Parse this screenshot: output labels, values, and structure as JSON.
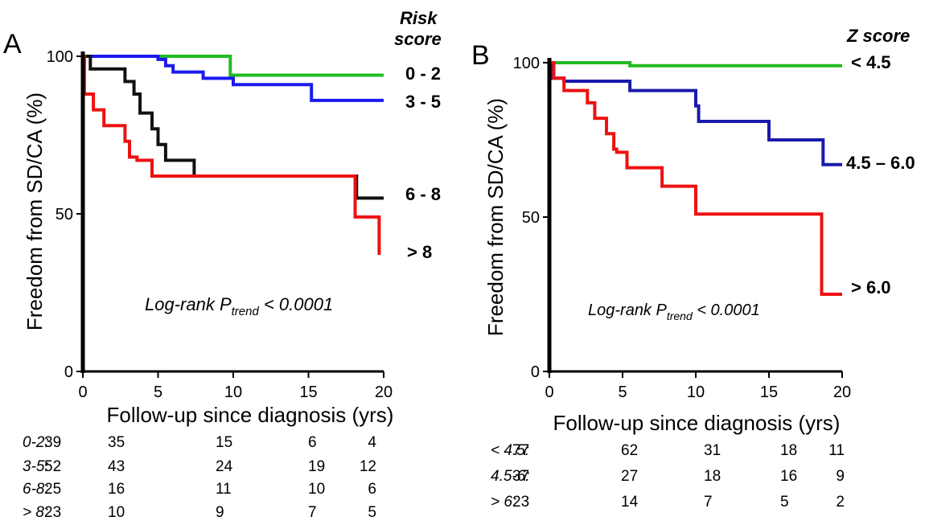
{
  "chart_data": [
    {
      "type": "line",
      "panel_label": "A",
      "xlabel": "Follow-up since diagnosis (yrs)",
      "ylabel": "Freedom from SD/CA (%)",
      "xlim": [
        0,
        20
      ],
      "ylim": [
        0,
        100
      ],
      "xticks": [
        "0",
        "5",
        "10",
        "15",
        "20"
      ],
      "yticks": [
        "0",
        "50",
        "100"
      ],
      "legend_title_line1": "Risk",
      "legend_title_line2": "score",
      "annotation_main": "Log-rank P",
      "annotation_sub": "trend",
      "annotation_tail": " < 0.0001",
      "series": [
        {
          "name": "0 - 2",
          "color": "#22bb22",
          "x": [
            0,
            9.8,
            9.8,
            20
          ],
          "y": [
            100,
            100,
            94,
            94
          ]
        },
        {
          "name": "3 - 5",
          "color": "#1a1aee",
          "x": [
            0,
            5.0,
            5.0,
            5.5,
            5.5,
            6.0,
            6.0,
            8.0,
            8.0,
            10.0,
            10.0,
            15.2,
            15.2,
            20
          ],
          "y": [
            100,
            100,
            99,
            99,
            97,
            97,
            95,
            95,
            93,
            93,
            91,
            91,
            86,
            86
          ]
        },
        {
          "name": "6 - 8",
          "color": "#111111",
          "x": [
            0,
            0.5,
            0.5,
            2.8,
            2.8,
            3.4,
            3.4,
            3.8,
            3.8,
            4.6,
            4.6,
            5.0,
            5.0,
            5.5,
            5.5,
            7.4,
            7.4,
            18.2,
            18.2,
            20
          ],
          "y": [
            100,
            100,
            96,
            96,
            92,
            92,
            88,
            88,
            82,
            82,
            77,
            77,
            72,
            72,
            67,
            67,
            62,
            62,
            55,
            55
          ]
        },
        {
          "name": "> 8",
          "color": "#ee1111",
          "x": [
            0,
            0.1,
            0.1,
            0.7,
            0.7,
            1.4,
            1.4,
            2.8,
            2.8,
            3.1,
            3.1,
            3.6,
            3.6,
            4.6,
            4.6,
            18.1,
            18.1,
            19.7,
            19.7
          ],
          "y": [
            100,
            100,
            88,
            88,
            83,
            83,
            78,
            78,
            73,
            73,
            68,
            68,
            67,
            67,
            62,
            62,
            49,
            49,
            37
          ]
        }
      ],
      "risk_table": [
        {
          "label": "0-2:",
          "values": [
            "39",
            "35",
            "15",
            "6",
            "4"
          ]
        },
        {
          "label": "3-5:",
          "values": [
            "52",
            "43",
            "24",
            "19",
            "12"
          ]
        },
        {
          "label": "6-8:",
          "values": [
            "25",
            "16",
            "11",
            "10",
            "6"
          ]
        },
        {
          "label": "> 8:",
          "values": [
            "23",
            "10",
            "9",
            "7",
            "5"
          ]
        }
      ]
    },
    {
      "type": "line",
      "panel_label": "B",
      "xlabel": "Follow-up  since diagnosis  (yrs)",
      "ylabel": "Freedom  from SD/CA (%)",
      "xlim": [
        0,
        20
      ],
      "ylim": [
        0,
        100
      ],
      "xticks": [
        "0",
        "5",
        "10",
        "15",
        "20"
      ],
      "yticks": [
        "0",
        "50",
        "100"
      ],
      "legend_title_line1": "Z score",
      "annotation_main": "Log-rank P",
      "annotation_sub": "trend",
      "annotation_tail": " < 0.0001",
      "series": [
        {
          "name": "< 4.5",
          "color": "#22bb22",
          "x": [
            0,
            5.5,
            5.5,
            20
          ],
          "y": [
            100,
            100,
            99,
            99
          ]
        },
        {
          "name": "4.5 – 6.0",
          "color": "#1a1aaa",
          "x": [
            0,
            0.2,
            0.2,
            1.0,
            1.0,
            5.5,
            5.5,
            10.0,
            10.0,
            10.2,
            10.2,
            15.0,
            15.0,
            18.7,
            18.7,
            20
          ],
          "y": [
            100,
            100,
            95,
            95,
            94,
            94,
            91,
            91,
            86,
            86,
            81,
            81,
            75,
            75,
            67,
            67
          ]
        },
        {
          "name": "> 6.0",
          "color": "#ee1111",
          "x": [
            0,
            0.3,
            0.3,
            1.0,
            1.0,
            2.6,
            2.6,
            3.1,
            3.1,
            3.9,
            3.9,
            4.4,
            4.4,
            4.6,
            4.6,
            5.3,
            5.3,
            7.7,
            7.7,
            10.0,
            10.0,
            18.6,
            18.6,
            20
          ],
          "y": [
            100,
            100,
            95,
            95,
            91,
            91,
            87,
            87,
            82,
            82,
            77,
            77,
            72,
            72,
            71,
            71,
            66,
            66,
            60,
            60,
            51,
            51,
            25,
            25
          ]
        }
      ],
      "risk_table": [
        {
          "label": "< 4.5:",
          "values": [
            "77",
            "62",
            "31",
            "18",
            "11"
          ]
        },
        {
          "label": "4.5-6:",
          "values": [
            "37",
            "27",
            "18",
            "16",
            "9"
          ]
        },
        {
          "label": "> 6:",
          "values": [
            "23",
            "14",
            "7",
            "5",
            "2"
          ]
        }
      ]
    }
  ]
}
